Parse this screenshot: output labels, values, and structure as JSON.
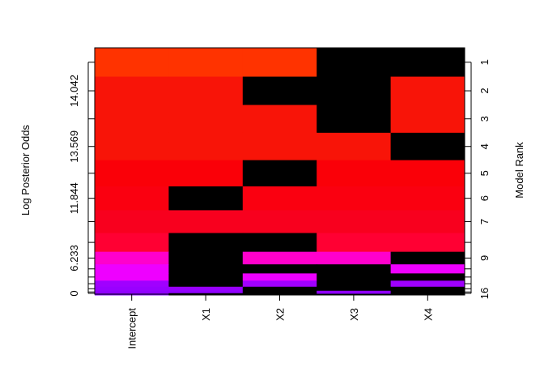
{
  "chart_data": {
    "type": "heatmap",
    "ylabel_left": "Log Posterior Odds",
    "ylabel_right": "Model Rank",
    "variables": [
      "Intercept",
      "X1",
      "X2",
      "X3",
      "X4"
    ],
    "excluded_color": "#000000",
    "models": [
      {
        "rank": 1,
        "log_posterior_odds": 14.3,
        "color": "#FF3300",
        "include": [
          1,
          1,
          1,
          0,
          0
        ]
      },
      {
        "rank": 2,
        "log_posterior_odds": 14.042,
        "color": "#F81408",
        "include": [
          1,
          1,
          0,
          0,
          1
        ]
      },
      {
        "rank": 3,
        "log_posterior_odds": 13.8,
        "color": "#F81408",
        "include": [
          1,
          1,
          1,
          0,
          1
        ]
      },
      {
        "rank": 4,
        "log_posterior_odds": 13.569,
        "color": "#F81408",
        "include": [
          1,
          1,
          1,
          1,
          0
        ]
      },
      {
        "rank": 5,
        "log_posterior_odds": 13.0,
        "color": "#FA0008",
        "include": [
          1,
          1,
          0,
          1,
          1
        ]
      },
      {
        "rank": 6,
        "log_posterior_odds": 11.844,
        "color": "#FA0010",
        "include": [
          1,
          0,
          1,
          1,
          1
        ]
      },
      {
        "rank": 7,
        "log_posterior_odds": 11.3,
        "color": "#F8001E",
        "include": [
          1,
          1,
          1,
          1,
          1
        ]
      },
      {
        "rank": 8,
        "log_posterior_odds": 9.3,
        "color": "#FF0033",
        "include": [
          1,
          0,
          0,
          1,
          1
        ]
      },
      {
        "rank": 9,
        "log_posterior_odds": 6.233,
        "color": "#FF00CC",
        "include": [
          1,
          0,
          1,
          1,
          0
        ]
      },
      {
        "rank": 10,
        "log_posterior_odds": 4.5,
        "color": "#EE00FF",
        "include": [
          1,
          0,
          0,
          0,
          1
        ]
      },
      {
        "rank": 11,
        "log_posterior_odds": 3.6,
        "color": "#EE00FF",
        "include": [
          1,
          0,
          1,
          0,
          0
        ]
      },
      {
        "rank": 12,
        "log_posterior_odds": 3.0,
        "color": "#A000FF",
        "include": [
          1,
          0,
          1,
          0,
          1
        ]
      },
      {
        "rank": 13,
        "log_posterior_odds": 2.0,
        "color": "#9900FF",
        "include": [
          1,
          1,
          0,
          0,
          0
        ]
      },
      {
        "rank": 14,
        "log_posterior_odds": 1.2,
        "color": "#9000FF",
        "include": [
          1,
          1,
          0,
          1,
          0
        ]
      },
      {
        "rank": 15,
        "log_posterior_odds": 0.5,
        "color": "#8800FF",
        "include": [
          1,
          0,
          0,
          1,
          0
        ]
      },
      {
        "rank": 16,
        "log_posterior_odds": 0,
        "color": "#8000FF",
        "include": [
          1,
          0,
          0,
          0,
          0
        ]
      }
    ],
    "left_tick_labels": [
      {
        "rank": 2,
        "label": "14.042"
      },
      {
        "rank": 4,
        "label": "13.569"
      },
      {
        "rank": 6,
        "label": "11.844"
      },
      {
        "rank": 9,
        "label": "6.233"
      },
      {
        "rank": 16,
        "label": "0"
      }
    ],
    "right_tick_labels": [
      {
        "rank": 1,
        "label": "1"
      },
      {
        "rank": 2,
        "label": "2"
      },
      {
        "rank": 3,
        "label": "3"
      },
      {
        "rank": 4,
        "label": "4"
      },
      {
        "rank": 5,
        "label": "5"
      },
      {
        "rank": 6,
        "label": "6"
      },
      {
        "rank": 7,
        "label": "7"
      },
      {
        "rank": 9,
        "label": "9"
      },
      {
        "rank": 16,
        "label": "16"
      }
    ]
  }
}
